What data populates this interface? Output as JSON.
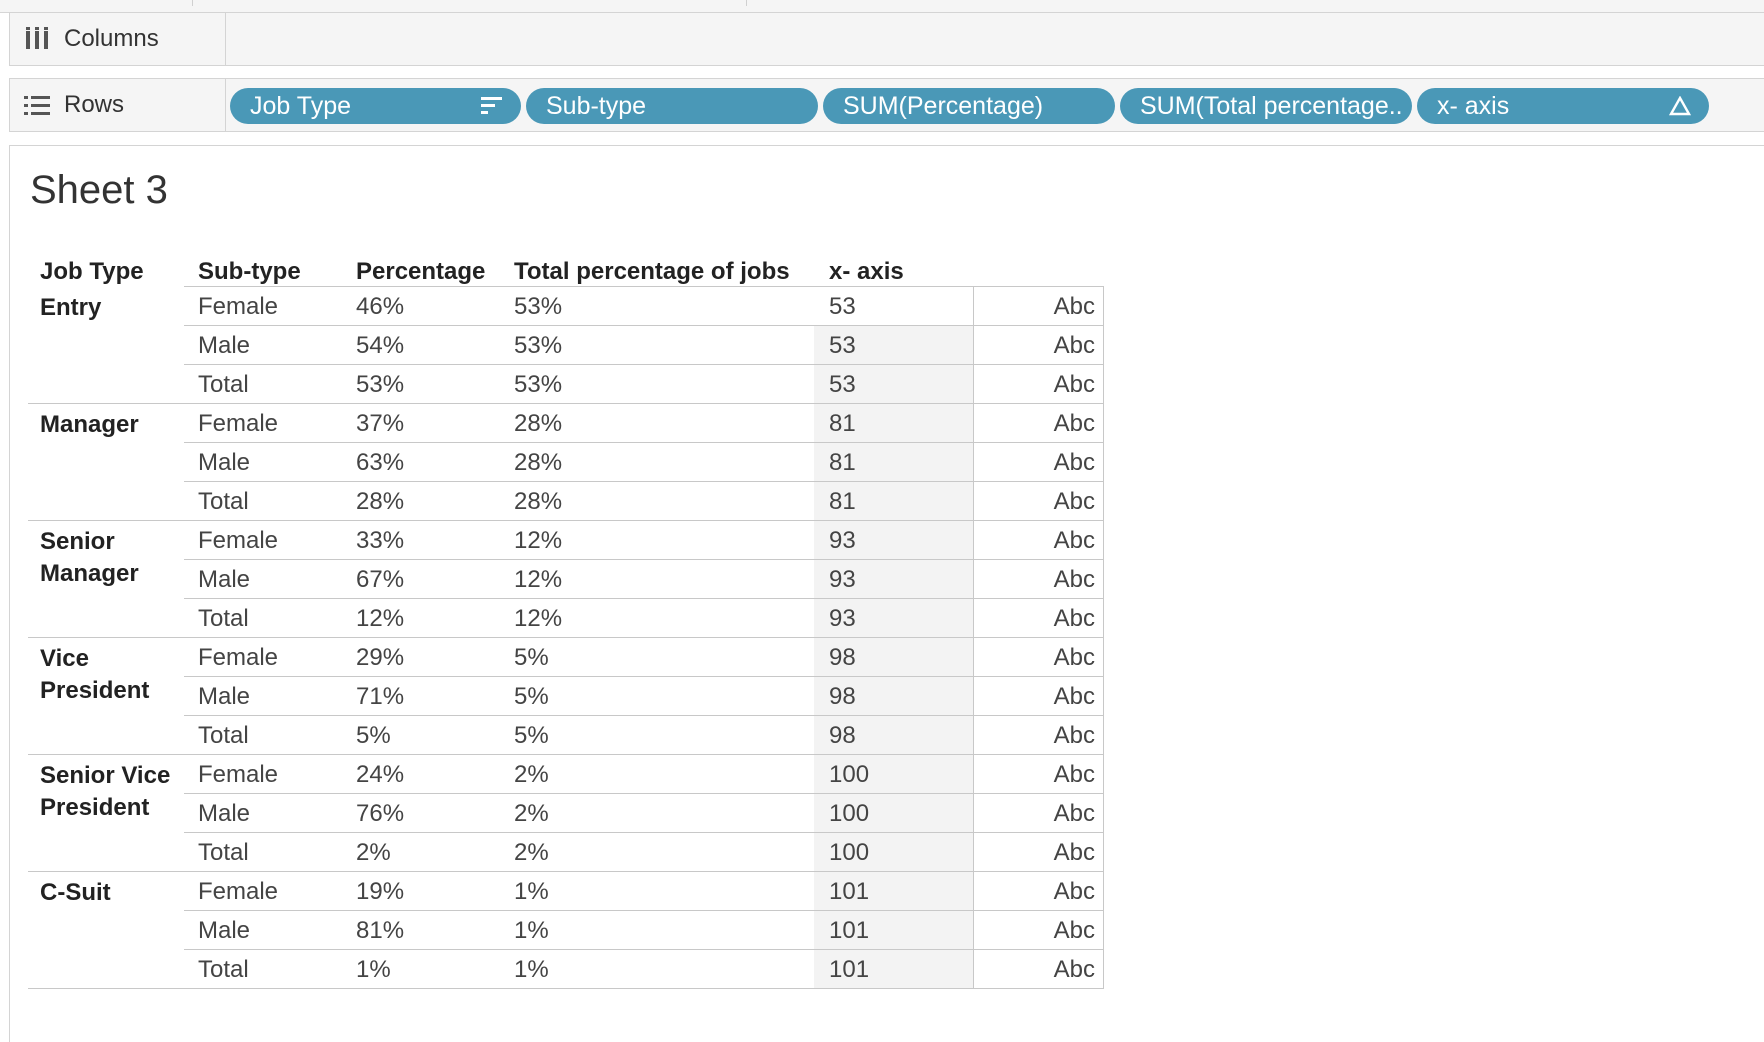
{
  "shelves": {
    "columns": {
      "label": "Columns",
      "icon": "columns-icon"
    },
    "rows": {
      "label": "Rows",
      "icon": "rows-icon",
      "pills": [
        {
          "label": "Job Type",
          "icon": "sort-icon"
        },
        {
          "label": "Sub-type"
        },
        {
          "label": "SUM(Percentage)"
        },
        {
          "label": "SUM(Total percentage.."
        },
        {
          "label": "x- axis",
          "icon": "delta-icon"
        }
      ]
    }
  },
  "sheet": {
    "title": "Sheet 3",
    "headers": [
      "Job Type",
      "Sub-type",
      "Percentage",
      "Total percentage of jobs",
      "x- axis"
    ],
    "groups": [
      {
        "job_type": "Entry",
        "rows": [
          {
            "sub": "Female",
            "pct": "46%",
            "total": "53%",
            "x": "53",
            "abc": "Abc"
          },
          {
            "sub": "Male",
            "pct": "54%",
            "total": "53%",
            "x": "53",
            "abc": "Abc"
          },
          {
            "sub": "Total",
            "pct": "53%",
            "total": "53%",
            "x": "53",
            "abc": "Abc"
          }
        ]
      },
      {
        "job_type": "Manager",
        "rows": [
          {
            "sub": "Female",
            "pct": "37%",
            "total": "28%",
            "x": "81",
            "abc": "Abc"
          },
          {
            "sub": "Male",
            "pct": "63%",
            "total": "28%",
            "x": "81",
            "abc": "Abc"
          },
          {
            "sub": "Total",
            "pct": "28%",
            "total": "28%",
            "x": "81",
            "abc": "Abc"
          }
        ]
      },
      {
        "job_type": "Senior Manager",
        "rows": [
          {
            "sub": "Female",
            "pct": "33%",
            "total": "12%",
            "x": "93",
            "abc": "Abc"
          },
          {
            "sub": "Male",
            "pct": "67%",
            "total": "12%",
            "x": "93",
            "abc": "Abc"
          },
          {
            "sub": "Total",
            "pct": "12%",
            "total": "12%",
            "x": "93",
            "abc": "Abc"
          }
        ]
      },
      {
        "job_type": "Vice President",
        "rows": [
          {
            "sub": "Female",
            "pct": "29%",
            "total": "5%",
            "x": "98",
            "abc": "Abc"
          },
          {
            "sub": "Male",
            "pct": "71%",
            "total": "5%",
            "x": "98",
            "abc": "Abc"
          },
          {
            "sub": "Total",
            "pct": "5%",
            "total": "5%",
            "x": "98",
            "abc": "Abc"
          }
        ]
      },
      {
        "job_type": "Senior Vice President",
        "rows": [
          {
            "sub": "Female",
            "pct": "24%",
            "total": "2%",
            "x": "100",
            "abc": "Abc"
          },
          {
            "sub": "Male",
            "pct": "76%",
            "total": "2%",
            "x": "100",
            "abc": "Abc"
          },
          {
            "sub": "Total",
            "pct": "2%",
            "total": "2%",
            "x": "100",
            "abc": "Abc"
          }
        ]
      },
      {
        "job_type": "C-Suit",
        "rows": [
          {
            "sub": "Female",
            "pct": "19%",
            "total": "1%",
            "x": "101",
            "abc": "Abc"
          },
          {
            "sub": "Male",
            "pct": "81%",
            "total": "1%",
            "x": "101",
            "abc": "Abc"
          },
          {
            "sub": "Total",
            "pct": "1%",
            "total": "1%",
            "x": "101",
            "abc": "Abc"
          }
        ]
      }
    ]
  },
  "colors": {
    "pill": "#4a98b7",
    "shelf_bg": "#f5f5f5",
    "grid": "#c8c8c8"
  }
}
